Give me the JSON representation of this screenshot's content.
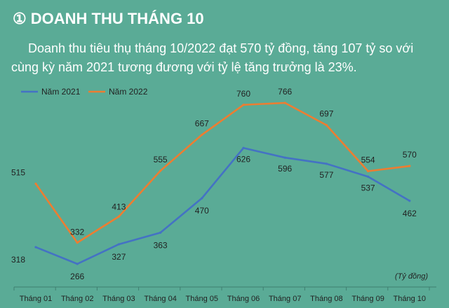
{
  "header": {
    "number_glyph": "①",
    "title": "DOANH THU THÁNG 10"
  },
  "description": "Doanh thu tiêu thụ tháng 10/2022 đạt 570 tỷ đồng, tăng 107 tỷ so với cùng kỳ năm 2021 tương đương với tỷ lệ tăng trưởng là 23%.",
  "chart_data": {
    "type": "line",
    "categories": [
      "Tháng 01",
      "Tháng 02",
      "Tháng 03",
      "Tháng 04",
      "Tháng 05",
      "Tháng 06",
      "Tháng 07",
      "Tháng 08",
      "Tháng 09",
      "Tháng 10"
    ],
    "unit_label": "(Tỷ đồng)",
    "series": [
      {
        "name": "Năm 2021",
        "color": "#4472c4",
        "values": [
          318,
          266,
          327,
          363,
          470,
          626,
          596,
          577,
          537,
          462
        ]
      },
      {
        "name": "Năm 2022",
        "color": "#ed7d31",
        "values": [
          515,
          332,
          413,
          555,
          667,
          760,
          766,
          697,
          554,
          570
        ]
      }
    ],
    "legend_position": "top-left",
    "grid": false
  }
}
